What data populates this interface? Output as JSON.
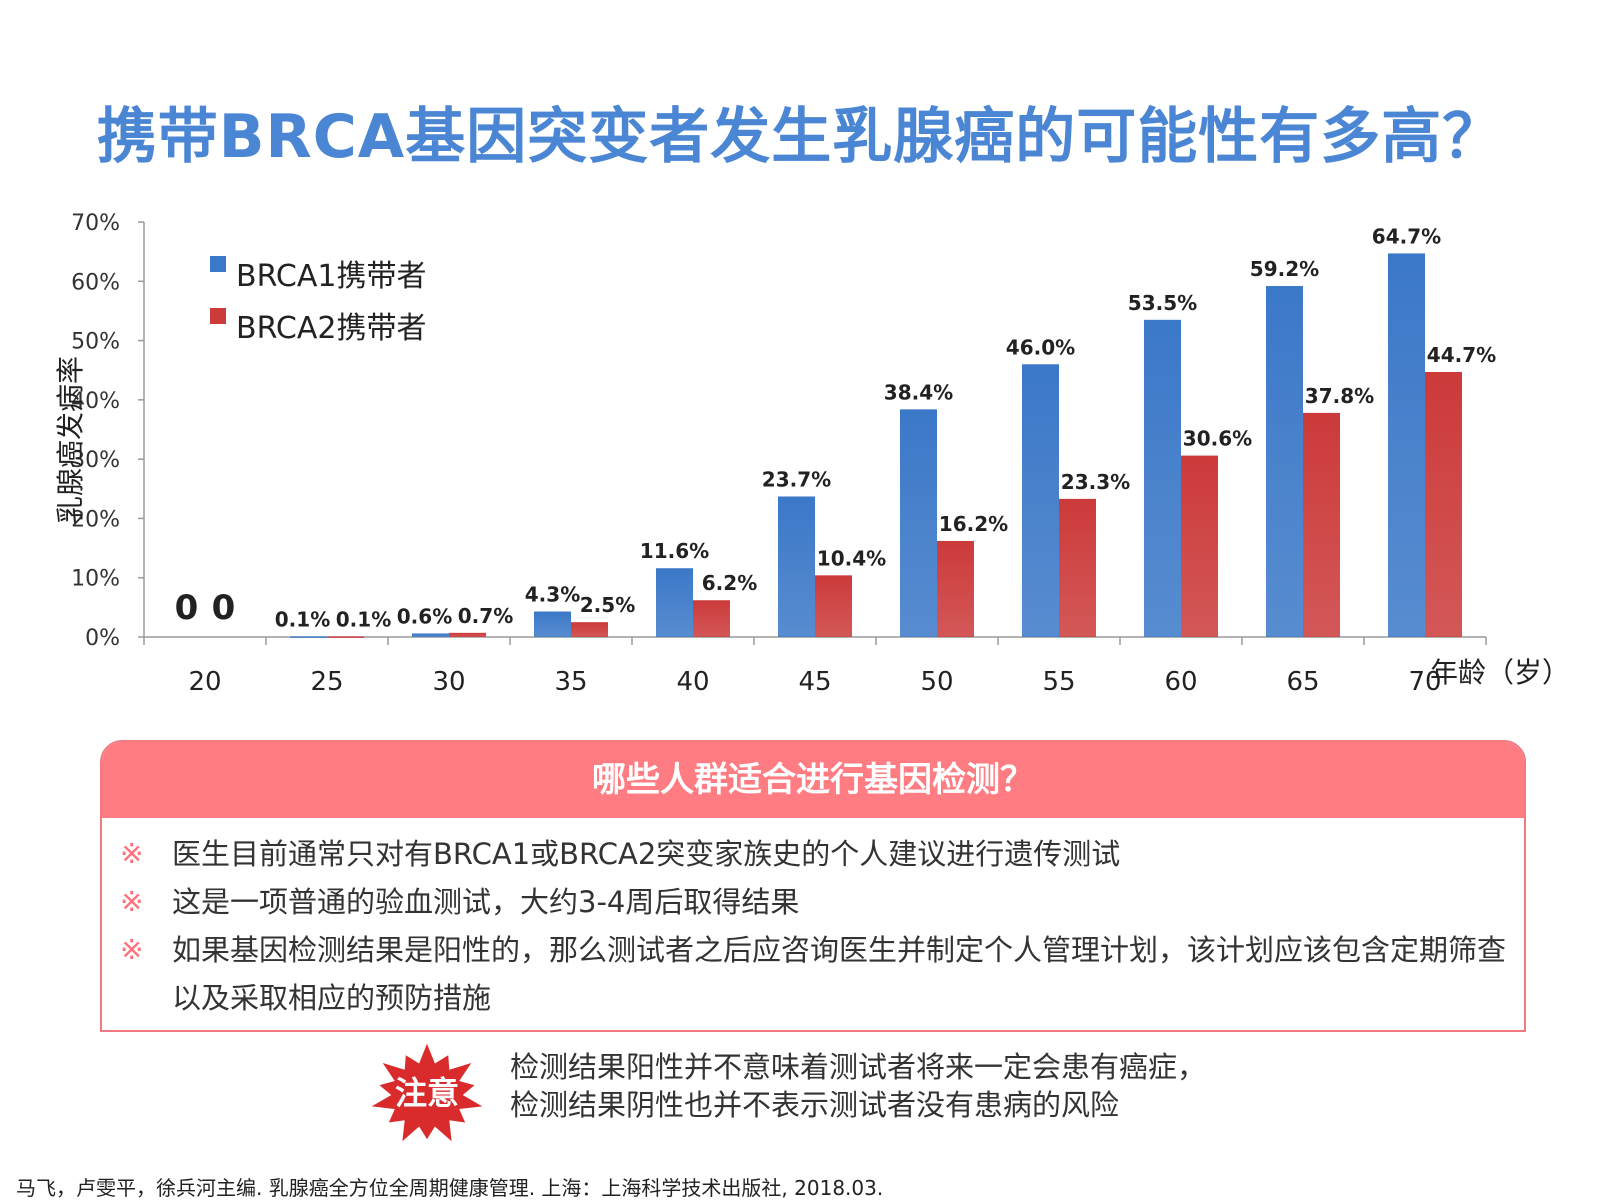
{
  "title": "携带BRCA基因突变者发生乳腺癌的可能性有多高？",
  "chart_data": {
    "type": "bar",
    "ylabel": "乳腺癌发病率",
    "xlabel": "年龄（岁）",
    "ylim": [
      0,
      70
    ],
    "yticks": [
      "0%",
      "10%",
      "20%",
      "30%",
      "40%",
      "50%",
      "60%",
      "70%"
    ],
    "legend_position": "top-left",
    "categories": [
      "20",
      "25",
      "30",
      "35",
      "40",
      "45",
      "50",
      "55",
      "60",
      "65",
      "70"
    ],
    "series": [
      {
        "name": "BRCA1携带者",
        "color": "#3b78c8",
        "values": [
          0,
          0.1,
          0.6,
          4.3,
          11.6,
          23.7,
          38.4,
          46.0,
          53.5,
          59.2,
          64.7
        ],
        "labels": [
          "0",
          "0.1%",
          "0.6%",
          "4.3%",
          "11.6%",
          "23.7%",
          "38.4%",
          "46.0%",
          "53.5%",
          "59.2%",
          "64.7%"
        ]
      },
      {
        "name": "BRCA2携带者",
        "color": "#cc3a3a",
        "values": [
          0,
          0.1,
          0.7,
          2.5,
          6.2,
          10.4,
          16.2,
          23.3,
          30.6,
          37.8,
          44.7
        ],
        "labels": [
          "0",
          "0.1%",
          "0.7%",
          "2.5%",
          "6.2%",
          "10.4%",
          "16.2%",
          "23.3%",
          "30.6%",
          "37.8%",
          "44.7%"
        ]
      }
    ]
  },
  "info": {
    "header": "哪些人群适合进行基因检测？",
    "bullet_mark": "※",
    "items": [
      "医生目前通常只对有BRCA1或BRCA2突变家族史的个人建议进行遗传测试",
      "这是一项普通的验血测试，大约3-4周后取得结果",
      "如果基因检测结果是阳性的，那么测试者之后应咨询医生并制定个人管理计划，该计划应该包含定期筛查以及采取相应的预防措施"
    ]
  },
  "note": {
    "label": "注意",
    "lines": [
      "检测结果阳性并不意味着测试者将来一定会患有癌症，",
      "检测结果阴性也并不表示测试者没有患病的风险"
    ]
  },
  "reference": "马飞，卢雯平，徐兵河主编. 乳腺癌全方位全周期健康管理. 上海：上海科学技术出版社, 2018.03."
}
